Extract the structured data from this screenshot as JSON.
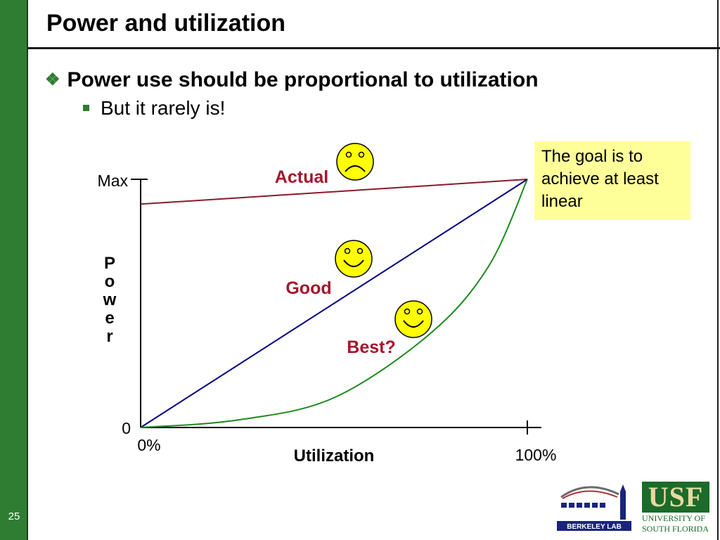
{
  "slide": {
    "title": "Power and utilization",
    "number": "25",
    "bullets": {
      "main": "Power use should be proportional to utilization",
      "sub": "But it rarely is!"
    },
    "callout": "The goal is to achieve at least linear",
    "colors": {
      "sidebar": "#2e7d32",
      "actual": "#8b1a2b",
      "good": "#000080",
      "best": "#1a8a1a",
      "label": "#a3162b",
      "callout_bg": "#ffff99",
      "smiley": "#ffff00"
    },
    "logos": {
      "usf_mark": "USF",
      "usf_line1": "UNIVERSITY OF",
      "usf_line2": "SOUTH FLORIDA",
      "berkeley": "BERKELEY LAB"
    }
  },
  "chart_data": {
    "type": "line",
    "xlabel": "Utilization",
    "ylabel": "Power",
    "x_ticks": [
      "0%",
      "100%"
    ],
    "y_ticks": [
      "0",
      "Max"
    ],
    "xlim": [
      0,
      100
    ],
    "ylim": [
      0,
      100
    ],
    "series": [
      {
        "name": "Actual",
        "x": [
          0,
          100
        ],
        "y": [
          90,
          100
        ],
        "mood": "sad",
        "smiley_icon": "sad-face-icon"
      },
      {
        "name": "Good",
        "x": [
          0,
          100
        ],
        "y": [
          0,
          100
        ],
        "mood": "happy",
        "smiley_icon": "smiley-face-icon"
      },
      {
        "name": "Best?",
        "x": [
          0,
          25,
          50,
          75,
          90,
          100
        ],
        "y": [
          0,
          3,
          12,
          38,
          65,
          100
        ],
        "mood": "happy",
        "smiley_icon": "smiley-face-icon"
      }
    ]
  }
}
